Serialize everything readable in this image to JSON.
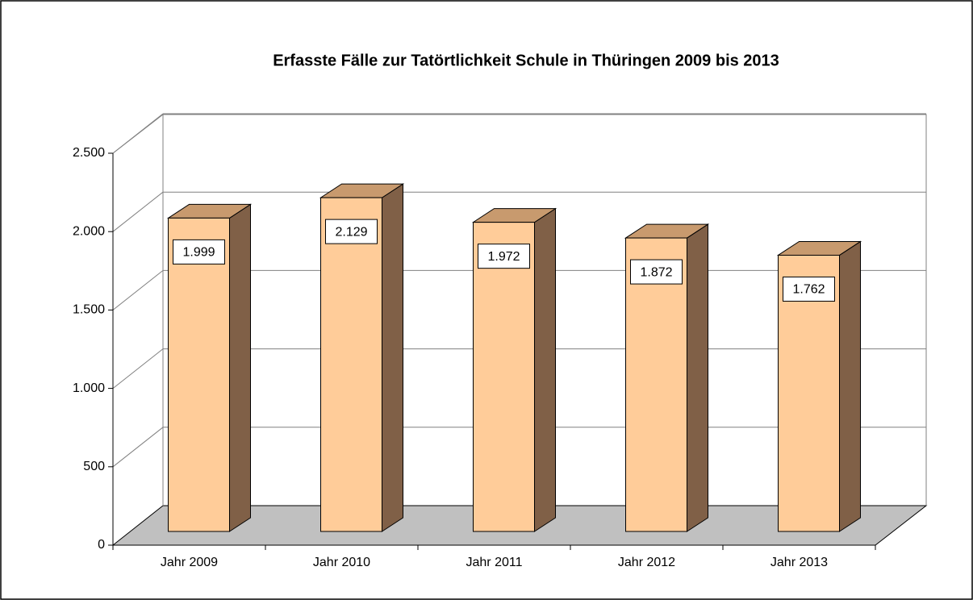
{
  "chart_data": {
    "type": "bar3d",
    "title": "Erfasste Fälle zur Tatörtlichkeit Schule in Thüringen 2009 bis 2013",
    "categories": [
      "Jahr 2009",
      "Jahr 2010",
      "Jahr 2011",
      "Jahr 2012",
      "Jahr 2013"
    ],
    "values": [
      1999,
      2129,
      1972,
      1872,
      1762
    ],
    "value_labels": [
      "1.999",
      "2.129",
      "1.972",
      "1.872",
      "1.762"
    ],
    "color": "#ffcc99",
    "ylim": [
      0,
      2500
    ],
    "yticks": [
      0,
      500,
      {
        "value": 1000,
        "label": "1.000"
      },
      {
        "value": 1500,
        "label": "1.500"
      },
      {
        "value": 2000,
        "label": "2.000"
      },
      {
        "value": 2500,
        "label": "2.500"
      }
    ],
    "grid": true
  }
}
